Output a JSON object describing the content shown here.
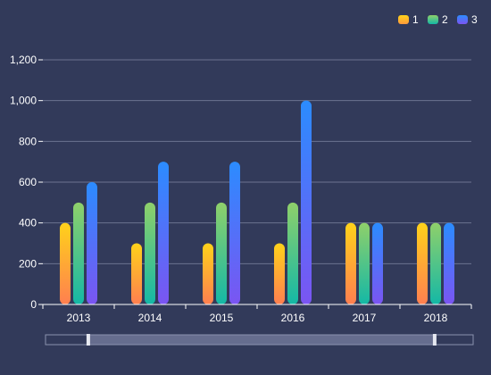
{
  "chart_data": {
    "type": "bar",
    "categories": [
      "2013",
      "2014",
      "2015",
      "2016",
      "2017",
      "2018"
    ],
    "series": [
      {
        "name": "1",
        "values": [
          400,
          300,
          300,
          300,
          400,
          400
        ]
      },
      {
        "name": "2",
        "values": [
          500,
          500,
          500,
          500,
          400,
          400
        ]
      },
      {
        "name": "3",
        "values": [
          600,
          700,
          700,
          1000,
          400,
          400
        ]
      }
    ],
    "ylim": [
      0,
      1200
    ],
    "yticks": [
      0,
      200,
      400,
      600,
      800,
      1000,
      1200
    ],
    "ytick_labels": [
      "0",
      "200",
      "400",
      "600",
      "800",
      "1,000",
      "1,200"
    ],
    "legend_position": "top-right",
    "grid": true,
    "datazoom": {
      "start": 0.1,
      "end": 0.91
    }
  },
  "colors": {
    "background": "#323a5a",
    "axis_text": "#ffffff",
    "grid_line": "#6c7390",
    "series_gradients": [
      {
        "top": "#ffd21a",
        "bottom": "#ff7f50"
      },
      {
        "top": "#8fd06a",
        "bottom": "#14b8a6"
      },
      {
        "top": "#2b8cff",
        "bottom": "#7b55f2"
      }
    ],
    "legend_swatches": [
      {
        "top": "#ffd21a",
        "bottom": "#ff9a3c"
      },
      {
        "top": "#8fd06a",
        "bottom": "#14b8a6"
      },
      {
        "top": "#2b8cff",
        "bottom": "#7b55f2"
      }
    ]
  }
}
